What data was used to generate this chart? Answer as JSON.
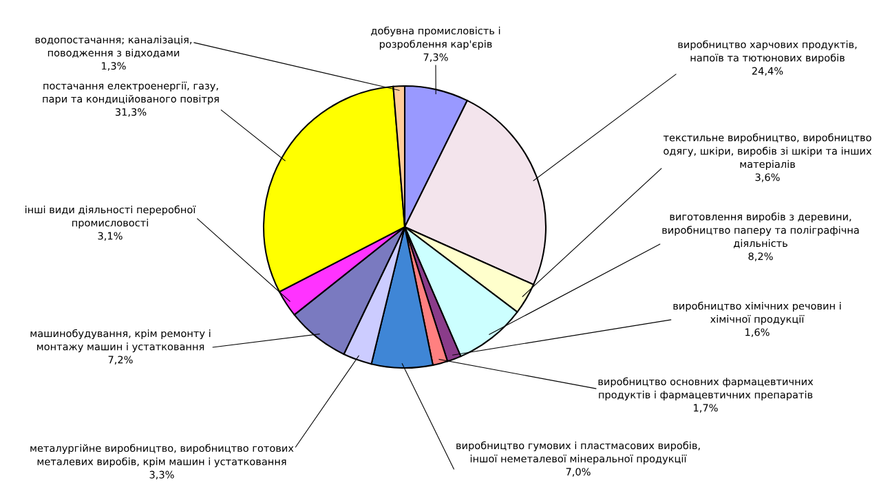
{
  "chart_data": {
    "type": "pie",
    "categories": [
      "добувна промисловість і\nрозроблення кар'єрів",
      "виробництво харчових продуктів,\nнапоїв та тютюнових виробів",
      "текстильне виробництво, виробництво\nодягу, шкіри, виробів зі шкіри та інших\nматеріалів",
      "виготовлення виробів з деревини,\nвиробництво паперу та поліграфічна\nдіяльність",
      "виробництво хімічних речовин і\nхімічної продукції",
      "виробництво основних фармацевтичних\nпродуктів і фармацевтичних препаратів",
      "виробництво гумових і пластмасових виробів,\nіншої неметалевої мінеральної продукції",
      "металургійне виробництво, виробництво готових\nметалевих виробів, крім машин і устатковання",
      "машинобудування, крім ремонту і\nмонтажу машин і устатковання",
      "інші види діяльності переробної\nпромисловості",
      "постачання електроенергії, газу,\nпари та кондиційованого повітря",
      "водопостачання; каналізація,\nповодження з відходами"
    ],
    "values": [
      7.3,
      24.4,
      3.6,
      8.2,
      1.6,
      1.7,
      7.0,
      3.3,
      7.2,
      3.1,
      31.3,
      1.3
    ],
    "value_labels": [
      "7,3%",
      "24,4%",
      "3,6%",
      "8,2%",
      "1,6%",
      "1,7%",
      "7,0%",
      "3,3%",
      "7,2%",
      "3,1%",
      "31,3%",
      "1,3%"
    ],
    "colors": [
      "#9999ff",
      "#f3e4ec",
      "#ffffcc",
      "#ccffff",
      "#8a3c8a",
      "#ff8080",
      "#3f86d6",
      "#ccccff",
      "#7a7ac0",
      "#ff33ff",
      "#ffff00",
      "#ffcc99"
    ],
    "legend": false
  }
}
